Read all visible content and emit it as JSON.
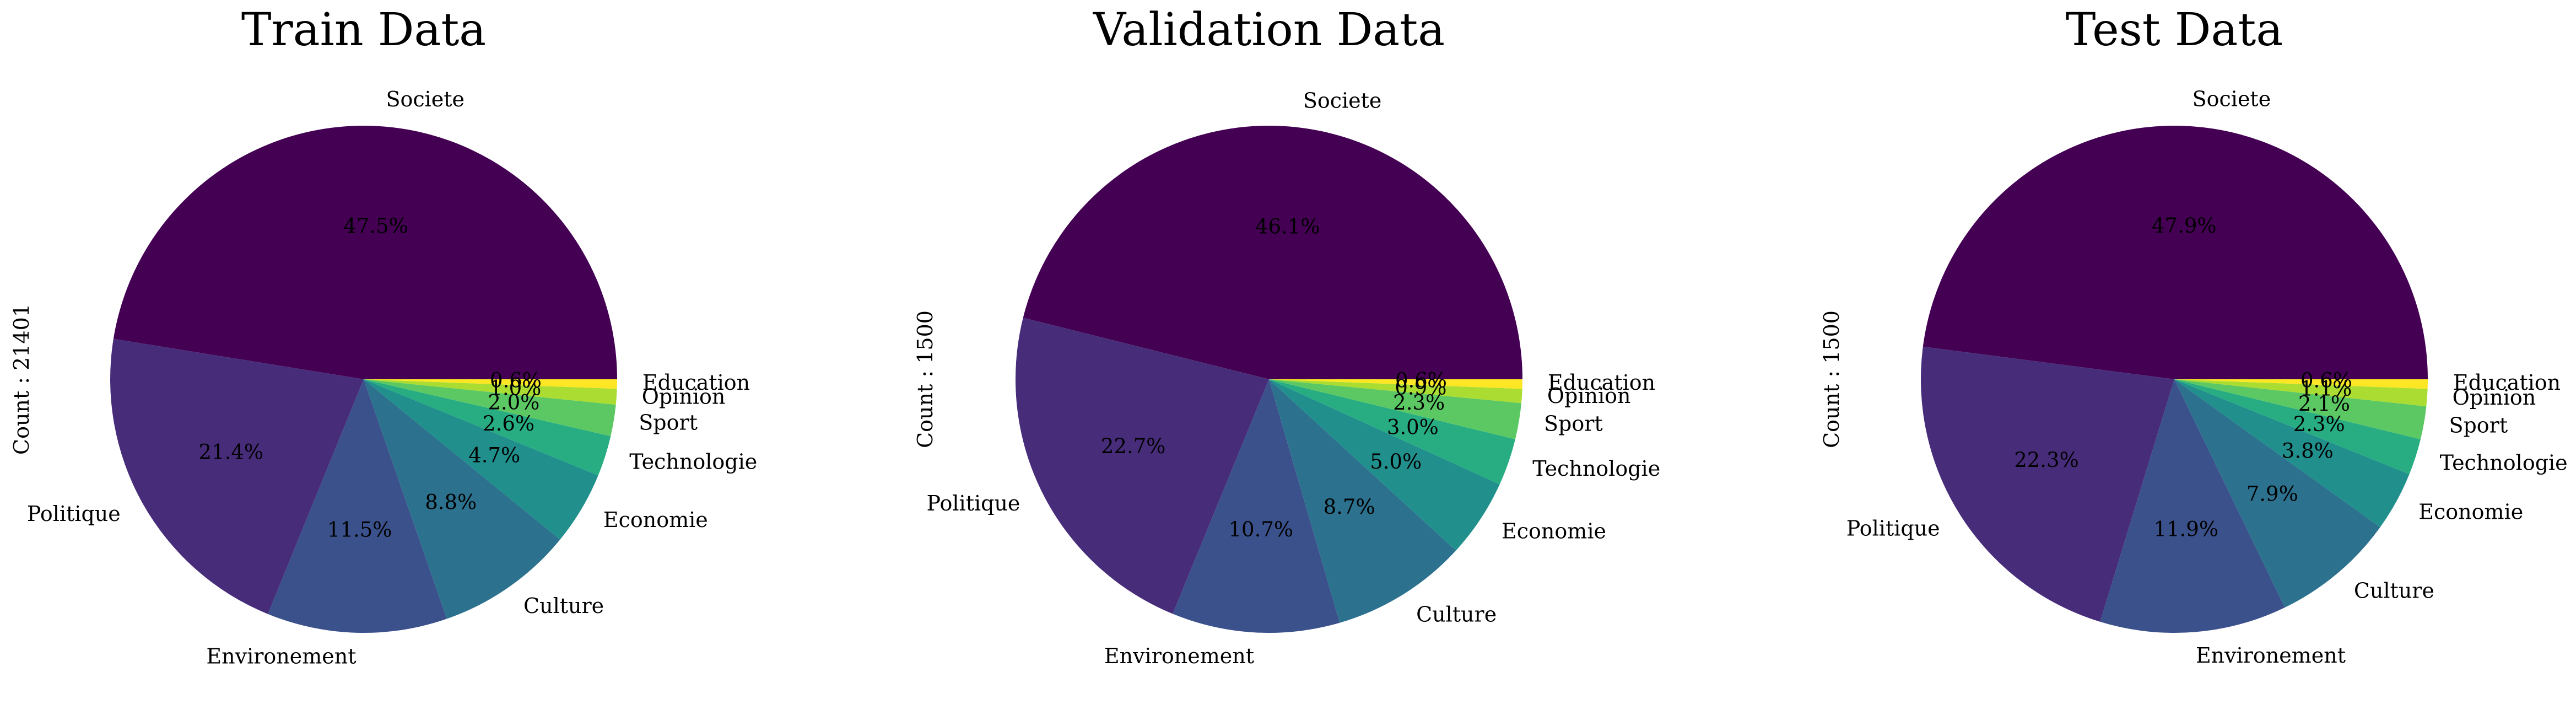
{
  "chart_data": [
    {
      "type": "pie",
      "title": "Train Data",
      "ylabel": "Count : 21401",
      "categories": [
        "Societe",
        "Politique",
        "Environement",
        "Culture",
        "Economie",
        "Technologie",
        "Sport",
        "Opinion",
        "Education"
      ],
      "values": [
        47.5,
        21.4,
        11.5,
        8.8,
        4.7,
        2.6,
        2.0,
        1.0,
        0.6
      ],
      "value_labels": [
        "47.5%",
        "21.4%",
        "11.5%",
        "8.8%",
        "4.7%",
        "2.6%",
        "2.0%",
        "1.0%",
        "0.6%"
      ]
    },
    {
      "type": "pie",
      "title": "Validation Data",
      "ylabel": "Count : 1500",
      "categories": [
        "Societe",
        "Politique",
        "Environement",
        "Culture",
        "Economie",
        "Technologie",
        "Sport",
        "Opinion",
        "Education"
      ],
      "values": [
        46.1,
        22.7,
        10.7,
        8.7,
        5.0,
        3.0,
        2.3,
        0.9,
        0.6
      ],
      "value_labels": [
        "46.1%",
        "22.7%",
        "10.7%",
        "8.7%",
        "5.0%",
        "3.0%",
        "2.3%",
        "0.9%",
        "0.6%"
      ]
    },
    {
      "type": "pie",
      "title": "Test Data",
      "ylabel": "Count : 1500",
      "categories": [
        "Societe",
        "Politique",
        "Environement",
        "Culture",
        "Economie",
        "Technologie",
        "Sport",
        "Opinion",
        "Education"
      ],
      "values": [
        47.9,
        22.3,
        11.9,
        7.9,
        3.8,
        2.3,
        2.1,
        1.1,
        0.6
      ],
      "value_labels": [
        "47.9%",
        "22.3%",
        "11.9%",
        "7.9%",
        "3.8%",
        "2.3%",
        "2.1%",
        "1.1%",
        "0.6%"
      ]
    }
  ],
  "colors": [
    "#440154",
    "#472c7a",
    "#3b518b",
    "#2c718e",
    "#21908d",
    "#27ad81",
    "#5cc863",
    "#aadc32",
    "#fde725"
  ]
}
